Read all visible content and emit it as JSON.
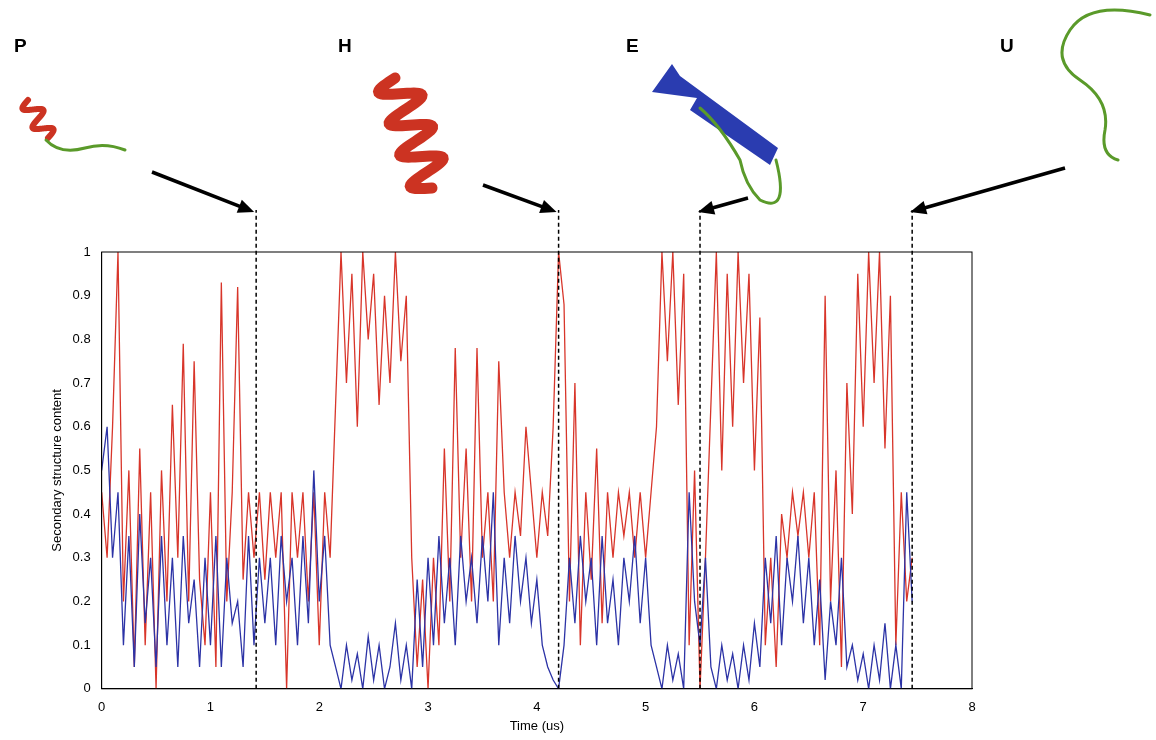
{
  "chart_data": {
    "type": "line",
    "xlabel": "Time (us)",
    "ylabel": "Secondary structure content",
    "x": [
      0,
      0.05,
      0.1,
      0.15,
      0.2,
      0.25,
      0.3,
      0.35,
      0.4,
      0.45,
      0.5,
      0.55,
      0.6,
      0.65,
      0.7,
      0.75,
      0.8,
      0.85,
      0.9,
      0.95,
      1,
      1.05,
      1.1,
      1.15,
      1.2,
      1.25,
      1.3,
      1.35,
      1.4,
      1.45,
      1.5,
      1.55,
      1.6,
      1.65,
      1.7,
      1.75,
      1.8,
      1.85,
      1.9,
      1.95,
      2,
      2.05,
      2.1,
      2.15,
      2.2,
      2.25,
      2.3,
      2.35,
      2.4,
      2.45,
      2.5,
      2.55,
      2.6,
      2.65,
      2.7,
      2.75,
      2.8,
      2.85,
      2.9,
      2.95,
      3,
      3.05,
      3.1,
      3.15,
      3.2,
      3.25,
      3.3,
      3.35,
      3.4,
      3.45,
      3.5,
      3.55,
      3.6,
      3.65,
      3.7,
      3.75,
      3.8,
      3.85,
      3.9,
      3.95,
      4,
      4.05,
      4.1,
      4.15,
      4.2,
      4.25,
      4.3,
      4.35,
      4.4,
      4.45,
      4.5,
      4.55,
      4.6,
      4.65,
      4.7,
      4.75,
      4.8,
      4.85,
      4.9,
      4.95,
      5,
      5.05,
      5.1,
      5.15,
      5.2,
      5.25,
      5.3,
      5.35,
      5.4,
      5.45,
      5.5,
      5.55,
      5.6,
      5.65,
      5.7,
      5.75,
      5.8,
      5.85,
      5.9,
      5.95,
      6,
      6.05,
      6.1,
      6.15,
      6.2,
      6.25,
      6.3,
      6.35,
      6.4,
      6.45,
      6.5,
      6.55,
      6.6,
      6.65,
      6.7,
      6.75,
      6.8,
      6.85,
      6.9,
      6.95,
      7,
      7.05,
      7.1,
      7.15,
      7.2,
      7.25,
      7.3,
      7.35,
      7.4,
      7.45
    ],
    "series": [
      {
        "color": "#d8352a",
        "values": [
          0.45,
          0.3,
          0.6,
          1.0,
          0.2,
          0.5,
          0.05,
          0.55,
          0.1,
          0.45,
          0.0,
          0.5,
          0.2,
          0.65,
          0.3,
          0.79,
          0.2,
          0.75,
          0.25,
          0.1,
          0.45,
          0.05,
          0.93,
          0.2,
          0.45,
          0.92,
          0.25,
          0.45,
          0.3,
          0.45,
          0.25,
          0.45,
          0.3,
          0.45,
          0.0,
          0.45,
          0.3,
          0.45,
          0.2,
          0.45,
          0.1,
          0.45,
          0.3,
          0.65,
          1.0,
          0.7,
          0.95,
          0.6,
          1.0,
          0.8,
          0.95,
          0.65,
          0.9,
          0.7,
          1.0,
          0.75,
          0.9,
          0.3,
          0.05,
          0.25,
          0.0,
          0.3,
          0.1,
          0.55,
          0.2,
          0.78,
          0.3,
          0.55,
          0.2,
          0.78,
          0.3,
          0.45,
          0.2,
          0.75,
          0.45,
          0.3,
          0.45,
          0.35,
          0.6,
          0.45,
          0.3,
          0.45,
          0.35,
          0.6,
          1.0,
          0.88,
          0.2,
          0.7,
          0.1,
          0.45,
          0.25,
          0.55,
          0.15,
          0.45,
          0.3,
          0.45,
          0.35,
          0.45,
          0.3,
          0.45,
          0.3,
          0.45,
          0.6,
          1.0,
          0.75,
          1.0,
          0.65,
          0.95,
          0.1,
          0.5,
          0.0,
          0.3,
          0.65,
          1.0,
          0.5,
          0.95,
          0.6,
          1.0,
          0.7,
          0.95,
          0.5,
          0.85,
          0.1,
          0.3,
          0.05,
          0.4,
          0.3,
          0.45,
          0.35,
          0.45,
          0.3,
          0.45,
          0.1,
          0.9,
          0.2,
          0.5,
          0.05,
          0.7,
          0.4,
          0.95,
          0.6,
          1.0,
          0.7,
          1.0,
          0.55,
          0.9,
          0.1,
          0.45,
          0.2,
          0.3
        ]
      },
      {
        "color": "#2c33a6",
        "values": [
          0.5,
          0.6,
          0.3,
          0.45,
          0.1,
          0.35,
          0.05,
          0.4,
          0.15,
          0.3,
          0.05,
          0.35,
          0.1,
          0.3,
          0.05,
          0.35,
          0.15,
          0.25,
          0.05,
          0.3,
          0.1,
          0.35,
          0.05,
          0.3,
          0.15,
          0.2,
          0.05,
          0.35,
          0.1,
          0.3,
          0.15,
          0.3,
          0.1,
          0.35,
          0.2,
          0.3,
          0.1,
          0.35,
          0.15,
          0.5,
          0.2,
          0.35,
          0.1,
          0.05,
          0.0,
          0.1,
          0.02,
          0.08,
          0.0,
          0.12,
          0.02,
          0.1,
          0.0,
          0.05,
          0.15,
          0.02,
          0.1,
          0.0,
          0.25,
          0.05,
          0.3,
          0.1,
          0.35,
          0.15,
          0.3,
          0.1,
          0.35,
          0.2,
          0.3,
          0.15,
          0.35,
          0.2,
          0.45,
          0.1,
          0.3,
          0.15,
          0.35,
          0.2,
          0.3,
          0.15,
          0.25,
          0.1,
          0.05,
          0.02,
          0.0,
          0.1,
          0.3,
          0.15,
          0.35,
          0.2,
          0.3,
          0.1,
          0.35,
          0.15,
          0.25,
          0.1,
          0.3,
          0.2,
          0.35,
          0.15,
          0.3,
          0.1,
          0.05,
          0.0,
          0.1,
          0.02,
          0.08,
          0.0,
          0.45,
          0.2,
          0.1,
          0.3,
          0.05,
          0.0,
          0.1,
          0.02,
          0.08,
          0.0,
          0.1,
          0.02,
          0.15,
          0.05,
          0.3,
          0.15,
          0.35,
          0.1,
          0.3,
          0.2,
          0.35,
          0.15,
          0.3,
          0.1,
          0.25,
          0.02,
          0.2,
          0.1,
          0.3,
          0.05,
          0.1,
          0.02,
          0.08,
          0.0,
          0.1,
          0.02,
          0.15,
          0.0,
          0.1,
          0.0,
          0.45,
          0.2
        ]
      }
    ],
    "xlim": [
      0,
      8
    ],
    "ylim": [
      0,
      1
    ],
    "xticks": [
      0,
      1,
      2,
      3,
      4,
      5,
      6,
      7,
      8
    ],
    "yticks": [
      0,
      0.1,
      0.2,
      0.3,
      0.4,
      0.5,
      0.6,
      0.7,
      0.8,
      0.9,
      1
    ],
    "grid": false,
    "annotations": [
      {
        "label": "P",
        "x": 1.42
      },
      {
        "label": "H",
        "x": 4.2
      },
      {
        "label": "E",
        "x": 5.5
      },
      {
        "label": "U",
        "x": 7.45
      }
    ]
  }
}
